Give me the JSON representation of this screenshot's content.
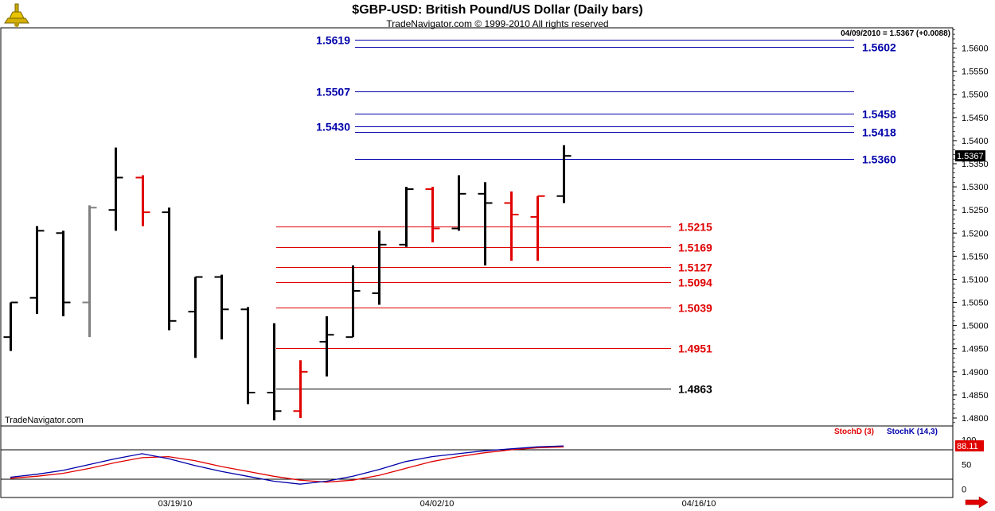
{
  "header": {
    "title": "$GBP-USD:  British Pound/US Dollar  (Daily bars)",
    "subtitle": "TradeNavigator.com © 1999-2010 All rights reserved",
    "quote": "04/09/2010 = 1.5367 (+0.0088)",
    "brand": "TradeNavigator.com"
  },
  "indicator": {
    "stochd_label": "StochD (3)",
    "stochk_label": "StochK (14,3)",
    "value_tag": "88.11",
    "yticks": [
      "100",
      "50",
      "0"
    ]
  },
  "colors": {
    "up": "#000000",
    "down": "#e00000",
    "blue": "#0000aa",
    "grey": "#808080",
    "value_tag_bg": "#e00000"
  },
  "chart_data": {
    "type": "bar",
    "title": "$GBP-USD:  British Pound/US Dollar  (Daily bars)",
    "ylim": [
      1.479,
      1.564
    ],
    "yticks": [
      "1.5600",
      "1.5550",
      "1.5500",
      "1.5450",
      "1.5400",
      "1.5350",
      "1.5300",
      "1.5250",
      "1.5200",
      "1.5150",
      "1.5100",
      "1.5050",
      "1.5000",
      "1.4950",
      "1.4900",
      "1.4850",
      "1.4800"
    ],
    "xlabels": [
      "03/19/10",
      "04/02/10",
      "04/16/10"
    ],
    "last_price_label": "1.5367",
    "ohlc": [
      {
        "o": 1.4975,
        "h": 1.505,
        "l": 1.4945,
        "c": 1.505,
        "color": "up"
      },
      {
        "o": 1.506,
        "h": 1.5215,
        "l": 1.5025,
        "c": 1.5205,
        "color": "up"
      },
      {
        "o": 1.52,
        "h": 1.5205,
        "l": 1.502,
        "c": 1.505,
        "color": "up"
      },
      {
        "o": 1.505,
        "h": 1.526,
        "l": 1.4975,
        "c": 1.5255,
        "color": "grey"
      },
      {
        "o": 1.525,
        "h": 1.5385,
        "l": 1.5205,
        "c": 1.532,
        "color": "up"
      },
      {
        "o": 1.532,
        "h": 1.5325,
        "l": 1.5215,
        "c": 1.5245,
        "color": "down"
      },
      {
        "o": 1.5245,
        "h": 1.5255,
        "l": 1.499,
        "c": 1.501,
        "color": "up"
      },
      {
        "o": 1.503,
        "h": 1.5105,
        "l": 1.493,
        "c": 1.5105,
        "color": "up"
      },
      {
        "o": 1.5105,
        "h": 1.511,
        "l": 1.497,
        "c": 1.5035,
        "color": "up"
      },
      {
        "o": 1.5035,
        "h": 1.504,
        "l": 1.483,
        "c": 1.4855,
        "color": "up"
      },
      {
        "o": 1.4855,
        "h": 1.5005,
        "l": 1.4795,
        "c": 1.4815,
        "color": "up"
      },
      {
        "o": 1.4815,
        "h": 1.4925,
        "l": 1.48,
        "c": 1.49,
        "color": "down"
      },
      {
        "o": 1.4965,
        "h": 1.502,
        "l": 1.489,
        "c": 1.498,
        "color": "up"
      },
      {
        "o": 1.4975,
        "h": 1.513,
        "l": 1.4975,
        "c": 1.5075,
        "color": "up"
      },
      {
        "o": 1.507,
        "h": 1.5205,
        "l": 1.5045,
        "c": 1.5175,
        "color": "up"
      },
      {
        "o": 1.5175,
        "h": 1.53,
        "l": 1.517,
        "c": 1.5295,
        "color": "up"
      },
      {
        "o": 1.5295,
        "h": 1.53,
        "l": 1.518,
        "c": 1.521,
        "color": "down"
      },
      {
        "o": 1.521,
        "h": 1.5325,
        "l": 1.5205,
        "c": 1.5285,
        "color": "up"
      },
      {
        "o": 1.5285,
        "h": 1.531,
        "l": 1.513,
        "c": 1.5265,
        "color": "up"
      },
      {
        "o": 1.5265,
        "h": 1.529,
        "l": 1.514,
        "c": 1.524,
        "color": "down"
      },
      {
        "o": 1.5235,
        "h": 1.528,
        "l": 1.514,
        "c": 1.528,
        "color": "down"
      },
      {
        "o": 1.528,
        "h": 1.539,
        "l": 1.5265,
        "c": 1.5367,
        "color": "up"
      }
    ],
    "levels": [
      {
        "value": 1.5619,
        "label": "1.5619",
        "color": "blue",
        "label_side": "left"
      },
      {
        "value": 1.5602,
        "label": "1.5602",
        "color": "blue",
        "label_side": "right"
      },
      {
        "value": 1.5507,
        "label": "1.5507",
        "color": "blue",
        "label_side": "left"
      },
      {
        "value": 1.5458,
        "label": "1.5458",
        "color": "blue",
        "label_side": "right"
      },
      {
        "value": 1.543,
        "label": "1.5430",
        "color": "blue",
        "label_side": "left"
      },
      {
        "value": 1.5418,
        "label": "1.5418",
        "color": "blue",
        "label_side": "right"
      },
      {
        "value": 1.536,
        "label": "1.5360",
        "color": "blue",
        "label_side": "right"
      },
      {
        "value": 1.5215,
        "label": "1.5215",
        "color": "down",
        "label_side": "right"
      },
      {
        "value": 1.5169,
        "label": "1.5169",
        "color": "down",
        "label_side": "right"
      },
      {
        "value": 1.5127,
        "label": "1.5127",
        "color": "down",
        "label_side": "right"
      },
      {
        "value": 1.5094,
        "label": "1.5094",
        "color": "down",
        "label_side": "right"
      },
      {
        "value": 1.5039,
        "label": "1.5039",
        "color": "down",
        "label_side": "right"
      },
      {
        "value": 1.4951,
        "label": "1.4951",
        "color": "down",
        "label_side": "right"
      },
      {
        "value": 1.4863,
        "label": "1.4863",
        "color": "up",
        "label_side": "right"
      }
    ],
    "stochk": [
      24,
      30,
      38,
      50,
      62,
      72,
      62,
      48,
      36,
      26,
      16,
      10,
      16,
      26,
      40,
      56,
      66,
      72,
      78,
      82,
      86,
      88
    ],
    "stochd": [
      22,
      26,
      32,
      42,
      54,
      64,
      66,
      58,
      46,
      36,
      26,
      18,
      14,
      18,
      28,
      42,
      56,
      66,
      74,
      80,
      84,
      86
    ]
  }
}
